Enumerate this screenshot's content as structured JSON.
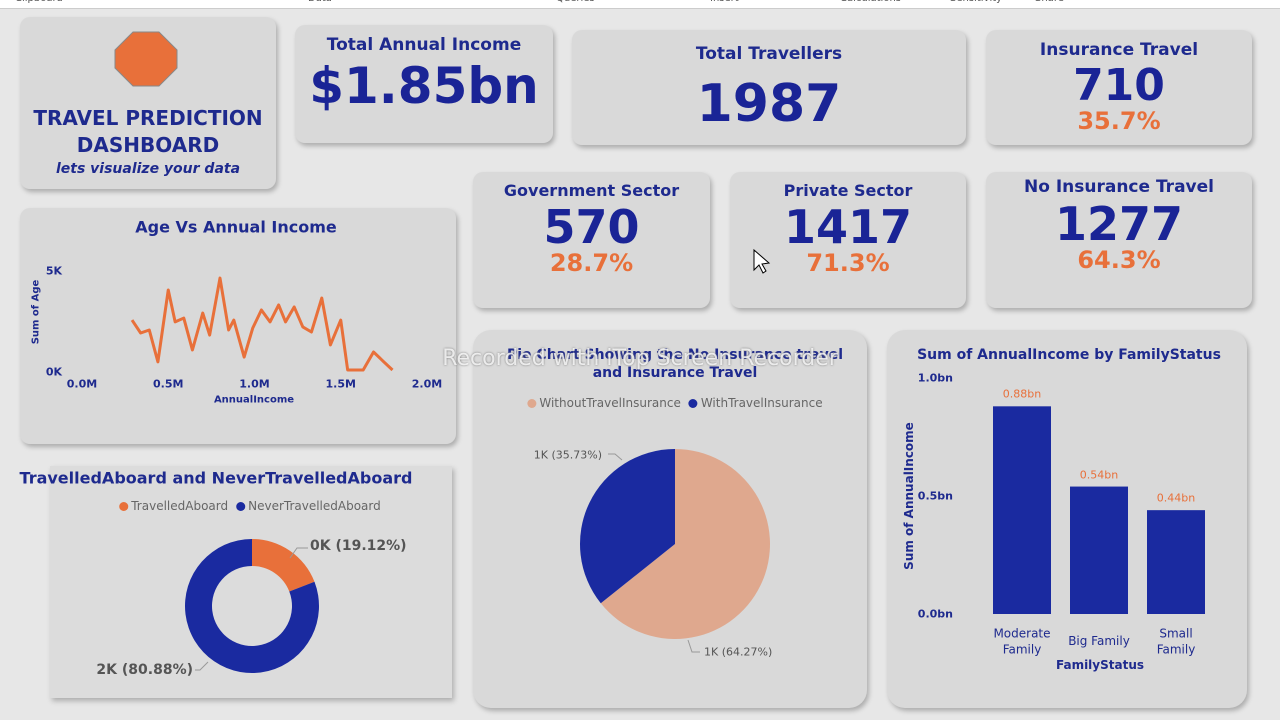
{
  "ribbon": [
    "Clipboard",
    "Data",
    "Queries",
    "Insert",
    "Calculations",
    "Sensitivity",
    "Share"
  ],
  "header": {
    "title": "TRAVEL PREDICTION DASHBOARD",
    "subtitle": "lets visualize your data"
  },
  "cards": [
    {
      "title": "Total Annual Income",
      "value": "$1.85bn"
    },
    {
      "title": "Total Travellers",
      "value": "1987"
    },
    {
      "title": "Insurance Travel",
      "value": "710",
      "percent": "35.7%"
    },
    {
      "title": "Government Sector",
      "value": "570",
      "percent": "28.7%"
    },
    {
      "title": "Private Sector",
      "value": "1417",
      "percent": "71.3%"
    },
    {
      "title": "No Insurance Travel",
      "value": "1277",
      "percent": "64.3%"
    }
  ],
  "watermark": "Recorded with iTop Screen Recorder",
  "chart_data": [
    {
      "type": "line",
      "title": "Age Vs Annual Income",
      "x_label": "AnnualIncome",
      "y_label": "Sum of Age",
      "color": "#e8703a",
      "x": [
        290000,
        340000,
        390000,
        440000,
        500000,
        540000,
        590000,
        640000,
        700000,
        740000,
        800000,
        850000,
        880000,
        940000,
        990000,
        1040000,
        1090000,
        1140000,
        1180000,
        1230000,
        1280000,
        1330000,
        1390000,
        1440000,
        1500000,
        1540000,
        1590000,
        1630000,
        1690000,
        1750000,
        1800000
      ],
      "values": [
        2570,
        1930,
        2080,
        500,
        4060,
        2480,
        2670,
        1090,
        2920,
        1830,
        4650,
        2080,
        2570,
        740,
        2180,
        3070,
        2480,
        3320,
        2480,
        3220,
        2230,
        1980,
        3660,
        1340,
        2570,
        100,
        100,
        100,
        990,
        500,
        100
      ],
      "xlim": [
        0,
        2000000
      ],
      "xticks": [
        {
          "value": 0,
          "label": "0.0M"
        },
        {
          "value": 500000,
          "label": "0.5M"
        },
        {
          "value": 1000000,
          "label": "1.0M"
        },
        {
          "value": 1500000,
          "label": "1.5M"
        },
        {
          "value": 2000000,
          "label": "2.0M"
        }
      ],
      "ylim": [
        0,
        5000
      ],
      "yticks": [
        {
          "value": 0,
          "label": "0K"
        },
        {
          "value": 5000,
          "label": "5K"
        }
      ]
    },
    {
      "type": "donut",
      "title": "TravelledAboard and NeverTravelledAboard",
      "categories": [
        "TravelledAboard",
        "NeverTravelledAboard"
      ],
      "colors": [
        "#e8703a",
        "#1a2aa0"
      ],
      "values": [
        19.12,
        80.88
      ],
      "value_labels": [
        "0K (19.12%)",
        "2K (80.88%)"
      ]
    },
    {
      "type": "pie",
      "title": "Pie Chart Showing the No Insurance travel and Insurance Travel",
      "categories": [
        "WithoutTravelInsurance",
        "WithTravelInsurance"
      ],
      "colors": [
        "#dfa88e",
        "#1a2aa0"
      ],
      "values": [
        64.27,
        35.73
      ],
      "value_labels": [
        "1K (64.27%)",
        "1K (35.73%)"
      ]
    },
    {
      "type": "bar",
      "title": "Sum of AnnualIncome by FamilyStatus",
      "x_label": "FamilyStatus",
      "y_label": "Sum of AnnualIncome",
      "color": "#1a2aa0",
      "categories": [
        "Moderate Family",
        "Big Family",
        "Small Family"
      ],
      "values": [
        0.88,
        0.54,
        0.44
      ],
      "value_labels": [
        "0.88bn",
        "0.54bn",
        "0.44bn"
      ],
      "ylim": [
        0,
        1.0
      ],
      "yticks": [
        {
          "value": 0,
          "label": "0.0bn"
        },
        {
          "value": 0.5,
          "label": "0.5bn"
        },
        {
          "value": 1.0,
          "label": "1.0bn"
        }
      ]
    }
  ]
}
